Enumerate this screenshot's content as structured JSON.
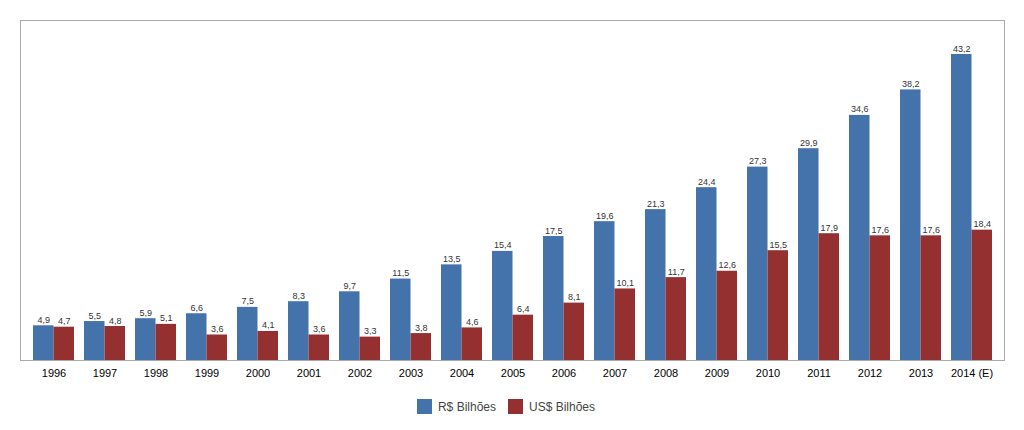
{
  "chart_data": {
    "type": "bar",
    "categories": [
      "1996",
      "1997",
      "1998",
      "1999",
      "2000",
      "2001",
      "2002",
      "2003",
      "2004",
      "2005",
      "2006",
      "2007",
      "2008",
      "2009",
      "2010",
      "2011",
      "2012",
      "2013",
      "2014 (E)"
    ],
    "series": [
      {
        "name": "R$ Bilhões",
        "color": "#4472AA",
        "values": [
          4.9,
          5.5,
          5.9,
          6.6,
          7.5,
          8.3,
          9.7,
          11.5,
          13.5,
          15.4,
          17.5,
          19.6,
          21.3,
          24.4,
          27.3,
          29.9,
          34.6,
          38.2,
          43.2
        ],
        "value_labels": [
          "4,9",
          "5,5",
          "5,9",
          "6,6",
          "7,5",
          "8,3",
          "9,7",
          "11,5",
          "13,5",
          "15,4",
          "17,5",
          "19,6",
          "21,3",
          "24,4",
          "27,3",
          "29,9",
          "34,6",
          "38,2",
          "43,2"
        ]
      },
      {
        "name": "US$ Bilhões",
        "color": "#943030",
        "values": [
          4.7,
          4.8,
          5.1,
          3.6,
          4.1,
          3.6,
          3.3,
          3.8,
          4.6,
          6.4,
          8.1,
          10.1,
          11.7,
          12.6,
          15.5,
          17.9,
          17.6,
          17.6,
          18.4
        ],
        "value_labels": [
          "4,7",
          "4,8",
          "5,1",
          "3,6",
          "4,1",
          "3,6",
          "3,3",
          "3,8",
          "4,6",
          "6,4",
          "8,1",
          "10,1",
          "11,7",
          "12,6",
          "15,5",
          "17,9",
          "17,6",
          "17,6",
          "18,4"
        ]
      }
    ],
    "ylim": [
      0,
      48
    ],
    "grid": false,
    "legend": "bottom",
    "data_labels": true,
    "tick_labels": "x"
  }
}
